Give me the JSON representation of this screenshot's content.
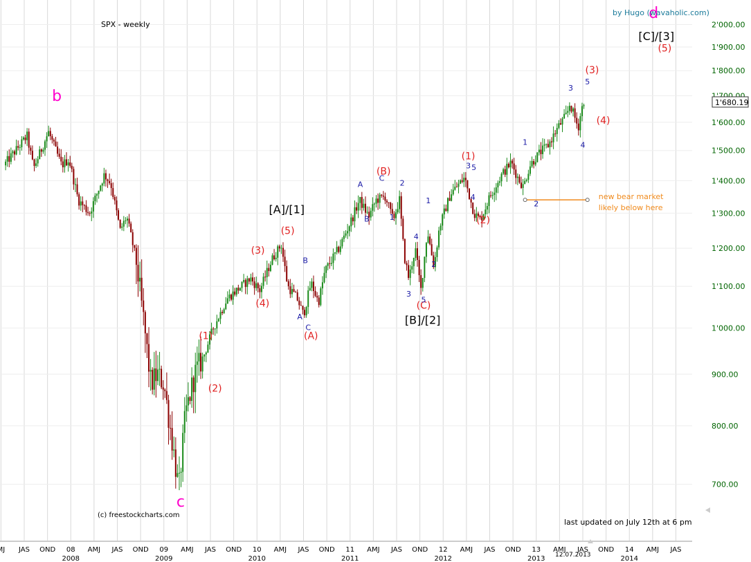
{
  "header": {
    "title": "SPX - weekly",
    "credit": "by Hugo (wavaholic.com)",
    "source": "(c) freestockcharts.com",
    "updated": "last updated on July 12th at 6 pm",
    "current_price": "1'680.19",
    "date_marker": "12.07.2013"
  },
  "colors": {
    "up_candle": "#1a8a1a",
    "down_candle": "#8b0000",
    "grid": "#d8d8d8",
    "axis_text": "#006400",
    "red_label": "#e02020",
    "blue_label": "#1a1aa6",
    "magenta_label": "#ff00cc",
    "orange_line": "#f08a1c"
  },
  "chart_data": {
    "type": "candlestick",
    "title": "SPX - weekly",
    "ylim": [
      660,
      2050
    ],
    "yscale": "log",
    "grid": true,
    "yticks": [
      "2'000.00",
      "1'900.00",
      "1'800.00",
      "1'700.00",
      "1'600.00",
      "1'500.00",
      "1'400.00",
      "1'300.00",
      "1'200.00",
      "1'100.00",
      "1'000.00",
      "900.00",
      "800.00",
      "700.00"
    ],
    "ytick_values": [
      2000,
      1900,
      1800,
      1700,
      1600,
      1500,
      1400,
      1300,
      1200,
      1100,
      1000,
      900,
      800,
      700
    ],
    "xticks_top": [
      "MJ",
      "JAS",
      "OND",
      "08",
      "AMJ",
      "JAS",
      "OND",
      "09",
      "AMJ",
      "JAS",
      "OND",
      "10",
      "AMJ",
      "JAS",
      "OND",
      "11",
      "AMJ",
      "JAS",
      "OND",
      "12",
      "AMJ",
      "JAS",
      "OND",
      "13",
      "AMJ",
      "JAS",
      "OND",
      "14",
      "AMJ",
      "JAS"
    ],
    "xticks_years": [
      "2008",
      "2009",
      "2010",
      "2011",
      "2012",
      "2013",
      "2014"
    ],
    "path_points": [
      [
        2007.3,
        1450
      ],
      [
        2007.55,
        1550
      ],
      [
        2007.62,
        1440
      ],
      [
        2007.78,
        1565
      ],
      [
        2007.92,
        1450
      ],
      [
        2008.0,
        1470
      ],
      [
        2008.1,
        1340
      ],
      [
        2008.22,
        1300
      ],
      [
        2008.38,
        1420
      ],
      [
        2008.45,
        1390
      ],
      [
        2008.55,
        1250
      ],
      [
        2008.62,
        1290
      ],
      [
        2008.72,
        1170
      ],
      [
        2008.8,
        1020
      ],
      [
        2008.88,
        880
      ],
      [
        2008.95,
        900
      ],
      [
        2009.02,
        880
      ],
      [
        2009.12,
        760
      ],
      [
        2009.18,
        690
      ],
      [
        2009.25,
        820
      ],
      [
        2009.35,
        900
      ],
      [
        2009.45,
        940
      ],
      [
        2009.55,
        1000
      ],
      [
        2009.7,
        1070
      ],
      [
        2009.8,
        1090
      ],
      [
        2009.95,
        1120
      ],
      [
        2010.05,
        1090
      ],
      [
        2010.18,
        1170
      ],
      [
        2010.28,
        1210
      ],
      [
        2010.35,
        1100
      ],
      [
        2010.45,
        1070
      ],
      [
        2010.52,
        1030
      ],
      [
        2010.6,
        1110
      ],
      [
        2010.68,
        1060
      ],
      [
        2010.75,
        1140
      ],
      [
        2010.9,
        1200
      ],
      [
        2011.05,
        1290
      ],
      [
        2011.12,
        1340
      ],
      [
        2011.22,
        1290
      ],
      [
        2011.3,
        1340
      ],
      [
        2011.4,
        1350
      ],
      [
        2011.48,
        1280
      ],
      [
        2011.55,
        1340
      ],
      [
        2011.6,
        1180
      ],
      [
        2011.65,
        1120
      ],
      [
        2011.72,
        1200
      ],
      [
        2011.78,
        1090
      ],
      [
        2011.85,
        1250
      ],
      [
        2011.92,
        1150
      ],
      [
        2011.98,
        1260
      ],
      [
        2012.1,
        1360
      ],
      [
        2012.25,
        1410
      ],
      [
        2012.35,
        1300
      ],
      [
        2012.42,
        1280
      ],
      [
        2012.52,
        1350
      ],
      [
        2012.65,
        1420
      ],
      [
        2012.75,
        1460
      ],
      [
        2012.82,
        1410
      ],
      [
        2012.88,
        1380
      ],
      [
        2012.95,
        1450
      ],
      [
        2013.05,
        1490
      ],
      [
        2013.15,
        1520
      ],
      [
        2013.25,
        1580
      ],
      [
        2013.35,
        1630
      ],
      [
        2013.38,
        1670
      ],
      [
        2013.43,
        1620
      ],
      [
        2013.47,
        1580
      ],
      [
        2013.5,
        1640
      ],
      [
        2013.53,
        1680
      ]
    ]
  },
  "annotations": {
    "magenta": [
      {
        "text": "b",
        "x": 2007.85,
        "v": 1680,
        "size": 22
      },
      {
        "text": "c",
        "x": 2009.18,
        "v": 665,
        "size": 22
      },
      {
        "text": "d",
        "x": 2014.26,
        "v": 2030,
        "size": 22
      }
    ],
    "black": [
      {
        "text": "[A]/[1]",
        "x": 2010.32,
        "v": 1300,
        "size": 16
      },
      {
        "text": "[B]/[2]",
        "x": 2011.78,
        "v": 1010,
        "size": 16
      },
      {
        "text": "[C]/[3]",
        "x": 2014.29,
        "v": 1930,
        "size": 16
      }
    ],
    "red": [
      {
        "text": "(1)",
        "x": 2009.45,
        "v": 975
      },
      {
        "text": "(2)",
        "x": 2009.55,
        "v": 865
      },
      {
        "text": "(3)",
        "x": 2010.01,
        "v": 1185
      },
      {
        "text": "(4)",
        "x": 2010.06,
        "v": 1050
      },
      {
        "text": "(5)",
        "x": 2010.33,
        "v": 1240
      },
      {
        "text": "(A)",
        "x": 2010.58,
        "v": 975
      },
      {
        "text": "(B)",
        "x": 2011.36,
        "v": 1420
      },
      {
        "text": "(C)",
        "x": 2011.79,
        "v": 1045
      },
      {
        "text": "(1)",
        "x": 2012.27,
        "v": 1470
      },
      {
        "text": "(2)",
        "x": 2012.43,
        "v": 1270
      },
      {
        "text": "(3)",
        "x": 2013.6,
        "v": 1790
      },
      {
        "text": "(4)",
        "x": 2013.72,
        "v": 1595
      },
      {
        "text": "(5)",
        "x": 2014.38,
        "v": 1880
      }
    ],
    "blue": [
      {
        "text": "A",
        "x": 2011.11,
        "v": 1380
      },
      {
        "text": "B",
        "x": 2011.18,
        "v": 1275
      },
      {
        "text": "C",
        "x": 2011.34,
        "v": 1400
      },
      {
        "text": "1",
        "x": 2011.45,
        "v": 1280
      },
      {
        "text": "2",
        "x": 2011.56,
        "v": 1385
      },
      {
        "text": "3",
        "x": 2011.63,
        "v": 1075
      },
      {
        "text": "4",
        "x": 2011.71,
        "v": 1225
      },
      {
        "text": "5",
        "x": 2011.79,
        "v": 1060
      },
      {
        "text": "1",
        "x": 2011.84,
        "v": 1330
      },
      {
        "text": "2",
        "x": 2011.9,
        "v": 1150
      },
      {
        "text": "A",
        "x": 2010.46,
        "v": 1020
      },
      {
        "text": "B",
        "x": 2010.52,
        "v": 1160
      },
      {
        "text": "C",
        "x": 2010.55,
        "v": 995
      },
      {
        "text": "3",
        "x": 2012.27,
        "v": 1440
      },
      {
        "text": "5",
        "x": 2012.33,
        "v": 1435
      },
      {
        "text": "4",
        "x": 2012.32,
        "v": 1340
      },
      {
        "text": "1",
        "x": 2012.88,
        "v": 1520
      },
      {
        "text": "2",
        "x": 2013.0,
        "v": 1320
      },
      {
        "text": "3",
        "x": 2013.37,
        "v": 1720
      },
      {
        "text": "5",
        "x": 2013.55,
        "v": 1745
      },
      {
        "text": "4",
        "x": 2013.5,
        "v": 1510
      }
    ]
  },
  "bear_line": {
    "value": 1340,
    "x_start": 2012.88,
    "x_end": 2013.55,
    "text_line1": "new bear market",
    "text_line2": "likely below here"
  }
}
